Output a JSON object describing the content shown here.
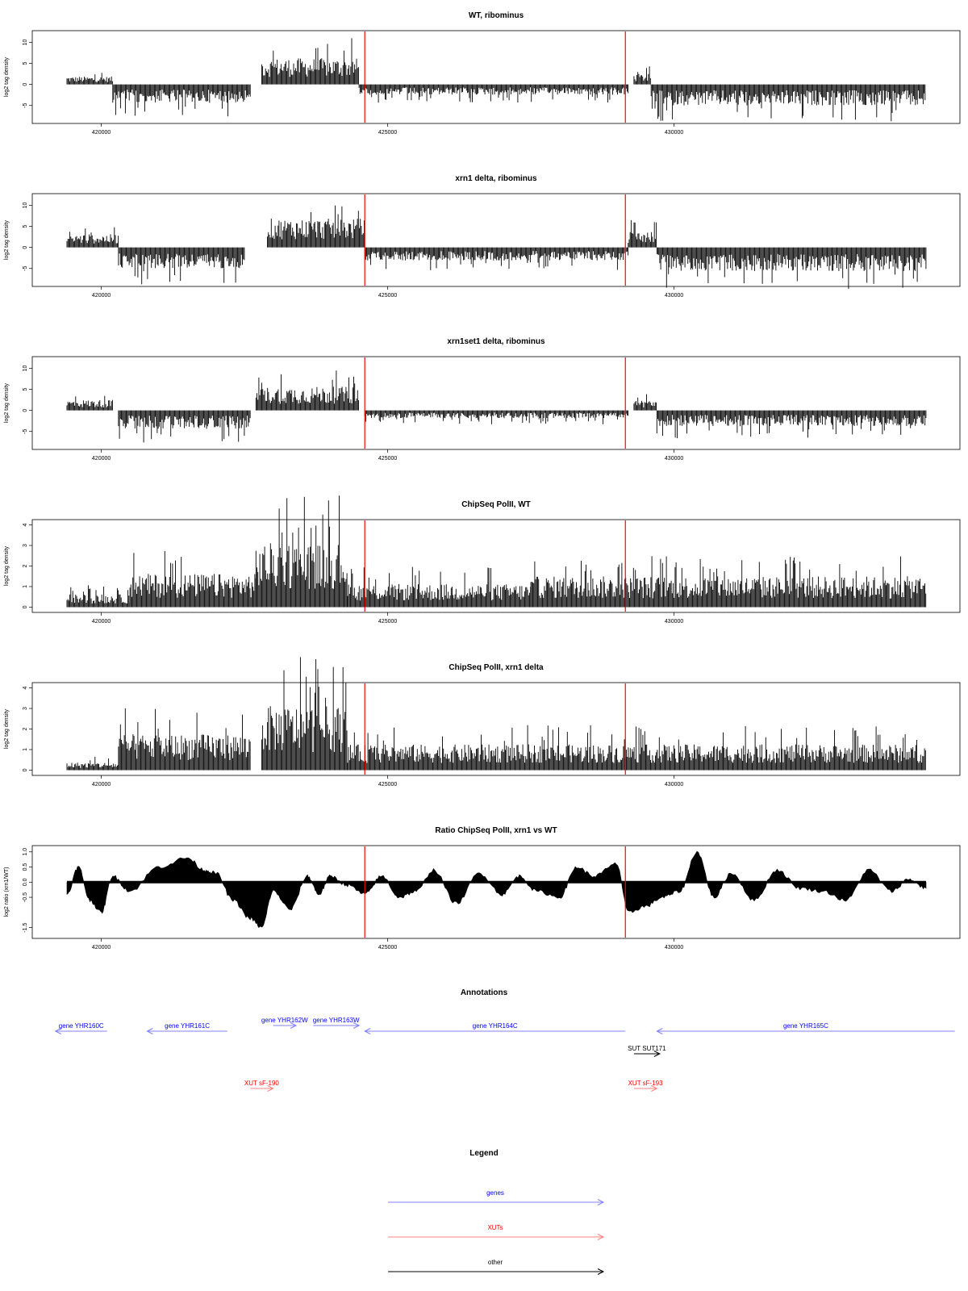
{
  "chart_data": [
    {
      "type": "bar",
      "title": "WT, ribominus",
      "ylabel": "log2 tag density",
      "ylim": [
        -8.5,
        12
      ],
      "yticks": [
        "-5",
        "0",
        "5",
        "10"
      ],
      "xlim": [
        419400,
        434400
      ],
      "xticks": [
        "420000",
        "425000",
        "430000"
      ],
      "markers": [
        424600,
        429150
      ],
      "series": [
        {
          "strand": "+",
          "segments": [
            [
              419400,
              420200,
              1.5
            ],
            [
              422800,
              424500,
              5.0
            ],
            [
              429300,
              429600,
              2.0
            ]
          ]
        },
        {
          "strand": "-",
          "segments": [
            [
              420200,
              422600,
              -3.5
            ],
            [
              424500,
              429200,
              -2.0
            ],
            [
              429600,
              434400,
              -4.0
            ]
          ]
        }
      ]
    },
    {
      "type": "bar",
      "title": "xrn1 delta, ribominus",
      "ylabel": "log2 tag density",
      "ylim": [
        -8.5,
        12
      ],
      "yticks": [
        "-5",
        "0",
        "5",
        "10"
      ],
      "xlim": [
        419400,
        434400
      ],
      "xticks": [
        "420000",
        "425000",
        "430000"
      ],
      "markers": [
        424600,
        429150
      ],
      "series": [
        {
          "strand": "+",
          "segments": [
            [
              419400,
              420300,
              2.5
            ],
            [
              422900,
              424600,
              5.5
            ],
            [
              429200,
              429700,
              3.0
            ]
          ]
        },
        {
          "strand": "-",
          "segments": [
            [
              420300,
              422500,
              -4.0
            ],
            [
              424600,
              429200,
              -2.5
            ],
            [
              429700,
              434400,
              -4.5
            ]
          ]
        }
      ]
    },
    {
      "type": "bar",
      "title": "xrn1set1 delta, ribominus",
      "ylabel": "log2 tag density",
      "ylim": [
        -8.5,
        12
      ],
      "yticks": [
        "-5",
        "0",
        "5",
        "10"
      ],
      "xlim": [
        419400,
        434400
      ],
      "xticks": [
        "420000",
        "425000",
        "430000"
      ],
      "markers": [
        424600,
        429150
      ],
      "series": [
        {
          "strand": "+",
          "segments": [
            [
              419400,
              420200,
              2.0
            ],
            [
              422700,
              424500,
              4.5
            ],
            [
              429300,
              429700,
              2.0
            ]
          ]
        },
        {
          "strand": "-",
          "segments": [
            [
              420300,
              422600,
              -3.5
            ],
            [
              424600,
              429200,
              -1.5
            ],
            [
              429700,
              434400,
              -3.0
            ]
          ]
        }
      ]
    },
    {
      "type": "bar",
      "title": "ChipSeq PolII, WT",
      "ylabel": "log2 tag density",
      "ylim": [
        -0.1,
        4.1
      ],
      "yticks": [
        "0",
        "1",
        "2",
        "3",
        "4"
      ],
      "xlim": [
        419400,
        434400
      ],
      "xticks": [
        "420000",
        "425000",
        "430000"
      ],
      "markers": [
        424600,
        429150
      ],
      "series": [
        {
          "strand": "+",
          "segments": [
            [
              419400,
              420500,
              0.5
            ],
            [
              420500,
              422700,
              1.3
            ],
            [
              422700,
              424300,
              2.5
            ],
            [
              424300,
              427500,
              0.9
            ],
            [
              427500,
              434400,
              1.2
            ]
          ]
        }
      ]
    },
    {
      "type": "bar",
      "title": "ChipSeq PolII, xrn1 delta",
      "ylabel": "log2 tag density",
      "ylim": [
        -0.1,
        4.1
      ],
      "yticks": [
        "0",
        "1",
        "2",
        "3",
        "4"
      ],
      "xlim": [
        419400,
        434400
      ],
      "xticks": [
        "420000",
        "425000",
        "430000"
      ],
      "markers": [
        424600,
        429150
      ],
      "series": [
        {
          "strand": "+",
          "segments": [
            [
              419400,
              420300,
              0.3
            ],
            [
              420300,
              422600,
              1.4
            ],
            [
              422800,
              424300,
              2.5
            ],
            [
              424300,
              434400,
              1.0
            ]
          ]
        }
      ]
    },
    {
      "type": "area",
      "title": "Ratio ChipSeq PolII, xrn1 vs WT",
      "ylabel": "log2 ratio (xrn1/WT)",
      "ylim": [
        -1.75,
        1.1
      ],
      "yticks": [
        "-1.5",
        "-0.5",
        "0.0",
        "0.5",
        "1.0"
      ],
      "xlim": [
        419400,
        434400
      ],
      "xticks": [
        "420000",
        "425000",
        "430000"
      ],
      "markers": [
        424600,
        429150
      ],
      "x": [
        419400,
        419600,
        419800,
        420000,
        420200,
        420500,
        421000,
        421500,
        421800,
        422000,
        422300,
        422600,
        422800,
        423000,
        423300,
        423600,
        423800,
        424000,
        424300,
        424600,
        424900,
        425200,
        425500,
        425800,
        426200,
        426600,
        427000,
        427300,
        427600,
        428000,
        428300,
        428600,
        429000,
        429200,
        429500,
        429800,
        430100,
        430400,
        430700,
        431000,
        431400,
        431800,
        432200,
        432600,
        433000,
        433400,
        433800,
        434100,
        434400
      ],
      "values": [
        -0.4,
        0.5,
        -0.6,
        -1.0,
        0.2,
        -0.3,
        0.5,
        0.8,
        0.4,
        0.3,
        -0.6,
        -1.2,
        -1.5,
        -0.3,
        -0.9,
        0.2,
        -0.4,
        0.2,
        -0.1,
        -0.4,
        0.2,
        -0.5,
        -0.3,
        0.4,
        -0.7,
        0.3,
        -0.4,
        0.2,
        -0.3,
        -0.5,
        0.5,
        0.2,
        0.6,
        -1.0,
        -0.8,
        -0.5,
        -0.3,
        1.0,
        -0.5,
        0.3,
        -0.6,
        0.4,
        -0.2,
        -0.3,
        -0.6,
        0.4,
        -0.3,
        0.1,
        -0.2
      ]
    }
  ],
  "annotations": {
    "title": "Annotations",
    "xlim": [
      419400,
      434400
    ],
    "features": [
      {
        "label": "gene YHR160C",
        "start": 419200,
        "end": 420100,
        "strand": "-",
        "kind": "gene",
        "row": 1
      },
      {
        "label": "gene YHR161C",
        "start": 420800,
        "end": 422200,
        "strand": "-",
        "kind": "gene",
        "row": 1
      },
      {
        "label": "gene YHR162W",
        "start": 423000,
        "end": 423400,
        "strand": "+",
        "kind": "gene",
        "row": 0
      },
      {
        "label": "gene YHR163W",
        "start": 423700,
        "end": 424500,
        "strand": "+",
        "kind": "gene",
        "row": 0
      },
      {
        "label": "gene YHR164C",
        "start": 424600,
        "end": 429150,
        "strand": "-",
        "kind": "gene",
        "row": 1
      },
      {
        "label": "gene YHR165C",
        "start": 429700,
        "end": 434900,
        "strand": "-",
        "kind": "gene",
        "row": 1
      },
      {
        "label": "SUT SUT171",
        "start": 429300,
        "end": 429750,
        "strand": "+",
        "kind": "other",
        "row": 2
      },
      {
        "label": "XUT sF-190",
        "start": 422600,
        "end": 423000,
        "strand": "+",
        "kind": "xut",
        "row": 3
      },
      {
        "label": "XUT sF-193",
        "start": 429300,
        "end": 429700,
        "strand": "+",
        "kind": "xut",
        "row": 3
      }
    ]
  },
  "legend": {
    "title": "Legend",
    "items": [
      {
        "label": "genes",
        "color": "#0000ff"
      },
      {
        "label": "XUTs",
        "color": "#ff0000"
      },
      {
        "label": "other",
        "color": "#000000"
      }
    ]
  },
  "colors": {
    "bars": "#000000",
    "marker": "#ff0000",
    "gene": "#0000ff",
    "xut": "#ff0000",
    "other": "#000000",
    "gene_line": "#8080ff",
    "xut_line": "#ff8080"
  }
}
